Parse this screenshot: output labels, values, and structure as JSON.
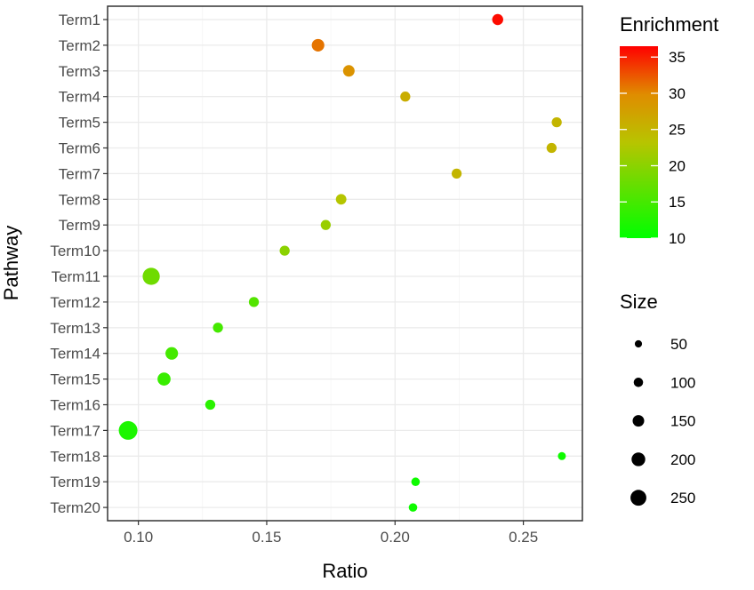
{
  "chart_data": {
    "type": "scatter",
    "xlabel": "Ratio",
    "ylabel": "Pathway",
    "xlim": [
      0.088,
      0.273
    ],
    "x_ticks": [
      0.1,
      0.15,
      0.2,
      0.25
    ],
    "x_tick_labels": [
      "0.10",
      "0.15",
      "0.20",
      "0.25"
    ],
    "grid": true,
    "categories": [
      "Term1",
      "Term2",
      "Term3",
      "Term4",
      "Term5",
      "Term6",
      "Term7",
      "Term8",
      "Term9",
      "Term10",
      "Term11",
      "Term12",
      "Term13",
      "Term14",
      "Term15",
      "Term16",
      "Term17",
      "Term18",
      "Term19",
      "Term20"
    ],
    "points": [
      {
        "term": "Term1",
        "ratio": 0.24,
        "enrichment": 36,
        "size": 100
      },
      {
        "term": "Term2",
        "ratio": 0.17,
        "enrichment": 31,
        "size": 130
      },
      {
        "term": "Term3",
        "ratio": 0.182,
        "enrichment": 29,
        "size": 110
      },
      {
        "term": "Term4",
        "ratio": 0.204,
        "enrichment": 26,
        "size": 80
      },
      {
        "term": "Term5",
        "ratio": 0.263,
        "enrichment": 25,
        "size": 80
      },
      {
        "term": "Term6",
        "ratio": 0.261,
        "enrichment": 25,
        "size": 80
      },
      {
        "term": "Term7",
        "ratio": 0.224,
        "enrichment": 25,
        "size": 80
      },
      {
        "term": "Term8",
        "ratio": 0.179,
        "enrichment": 23,
        "size": 90
      },
      {
        "term": "Term9",
        "ratio": 0.173,
        "enrichment": 21,
        "size": 80
      },
      {
        "term": "Term10",
        "ratio": 0.157,
        "enrichment": 20,
        "size": 80
      },
      {
        "term": "Term11",
        "ratio": 0.105,
        "enrichment": 18,
        "size": 220
      },
      {
        "term": "Term12",
        "ratio": 0.145,
        "enrichment": 16,
        "size": 80
      },
      {
        "term": "Term13",
        "ratio": 0.131,
        "enrichment": 15,
        "size": 80
      },
      {
        "term": "Term14",
        "ratio": 0.113,
        "enrichment": 15,
        "size": 130
      },
      {
        "term": "Term15",
        "ratio": 0.11,
        "enrichment": 14,
        "size": 140
      },
      {
        "term": "Term16",
        "ratio": 0.128,
        "enrichment": 13,
        "size": 80
      },
      {
        "term": "Term17",
        "ratio": 0.096,
        "enrichment": 12,
        "size": 250
      },
      {
        "term": "Term18",
        "ratio": 0.265,
        "enrichment": 11,
        "size": 40
      },
      {
        "term": "Term19",
        "ratio": 0.208,
        "enrichment": 11,
        "size": 50
      },
      {
        "term": "Term20",
        "ratio": 0.207,
        "enrichment": 11,
        "size": 50
      }
    ],
    "color_legend": {
      "title": "Enrichment",
      "min": 10,
      "max": 36.5,
      "ticks": [
        10,
        15,
        20,
        25,
        30,
        35
      ],
      "tick_labels": [
        "10",
        "15",
        "20",
        "25",
        "30",
        "35"
      ],
      "low_color": "#00ff00",
      "high_color": "#ff0000",
      "placement": "right"
    },
    "size_legend": {
      "title": "Size",
      "values": [
        50,
        100,
        150,
        200,
        250
      ],
      "labels": [
        "50",
        "100",
        "150",
        "200",
        "250"
      ],
      "placement": "right"
    }
  }
}
